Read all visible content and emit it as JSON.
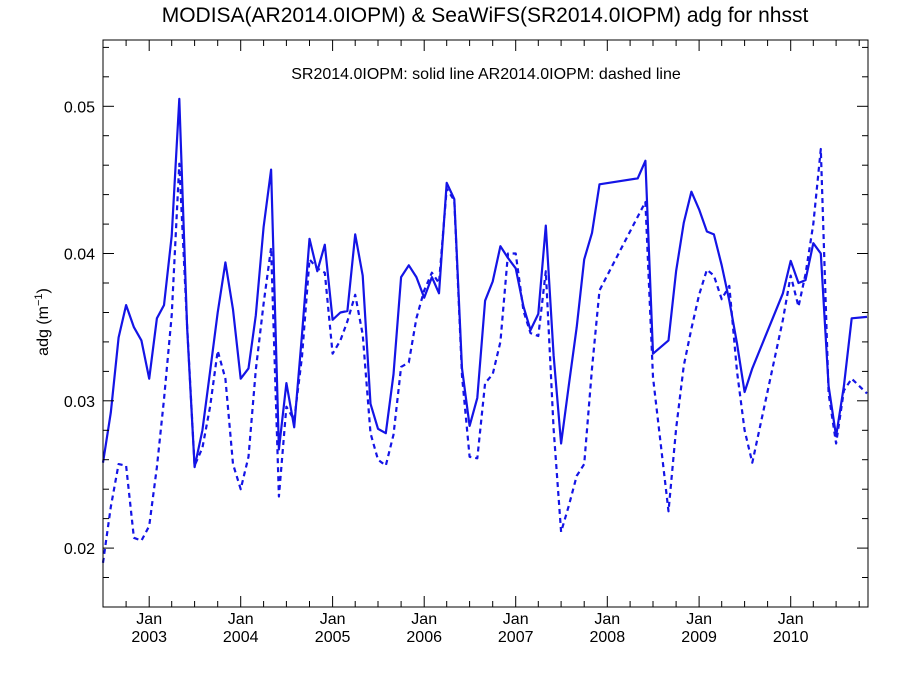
{
  "chart_data": {
    "type": "line",
    "title": "MODISA(AR2014.0IOPM) & SeaWiFS(SR2014.0IOPM)  adg for nhsst",
    "annotation": "SR2014.0IOPM: solid line   AR2014.0IOPM: dashed line",
    "ylabel": "adg (m",
    "ylabel_sup": "−1",
    "ylabel_close": ")",
    "xlim": [
      "2002-07-01",
      "2010-11-05"
    ],
    "ylim": [
      0.016,
      0.0545
    ],
    "y_ticks": [
      0.02,
      0.03,
      0.04,
      0.05
    ],
    "y_tick_labels": [
      "0.02",
      "0.03",
      "0.04",
      "0.05"
    ],
    "x_ticks": [
      {
        "date": "2003-01-01",
        "month": "Jan",
        "year": "2003"
      },
      {
        "date": "2004-01-01",
        "month": "Jan",
        "year": "2004"
      },
      {
        "date": "2005-01-01",
        "month": "Jan",
        "year": "2005"
      },
      {
        "date": "2006-01-01",
        "month": "Jan",
        "year": "2006"
      },
      {
        "date": "2007-01-01",
        "month": "Jan",
        "year": "2007"
      },
      {
        "date": "2008-01-01",
        "month": "Jan",
        "year": "2008"
      },
      {
        "date": "2009-01-01",
        "month": "Jan",
        "year": "2009"
      },
      {
        "date": "2010-01-01",
        "month": "Jan",
        "year": "2010"
      }
    ],
    "line_color": "#1414e6",
    "series": [
      {
        "style": "solid",
        "points": [
          [
            "2002-07-01",
            0.0258
          ],
          [
            "2002-08-01",
            0.0292
          ],
          [
            "2002-09-01",
            0.0343
          ],
          [
            "2002-10-01",
            0.0365
          ],
          [
            "2002-11-01",
            0.035
          ],
          [
            "2002-12-01",
            0.0341
          ],
          [
            "2003-01-01",
            0.0315
          ],
          [
            "2003-02-01",
            0.0356
          ],
          [
            "2003-03-01",
            0.0365
          ],
          [
            "2003-04-01",
            0.0412
          ],
          [
            "2003-05-01",
            0.0505
          ],
          [
            "2003-06-01",
            0.035
          ],
          [
            "2003-07-01",
            0.0255
          ],
          [
            "2003-08-01",
            0.028
          ],
          [
            "2003-09-01",
            0.032
          ],
          [
            "2003-10-01",
            0.036
          ],
          [
            "2003-11-01",
            0.0394
          ],
          [
            "2003-12-01",
            0.0362
          ],
          [
            "2004-01-01",
            0.0315
          ],
          [
            "2004-02-01",
            0.0322
          ],
          [
            "2004-03-01",
            0.0358
          ],
          [
            "2004-04-01",
            0.0418
          ],
          [
            "2004-05-01",
            0.0457
          ],
          [
            "2004-06-01",
            0.0267
          ],
          [
            "2004-07-01",
            0.0312
          ],
          [
            "2004-08-01",
            0.0282
          ],
          [
            "2004-09-01",
            0.0345
          ],
          [
            "2004-10-01",
            0.041
          ],
          [
            "2004-11-01",
            0.0388
          ],
          [
            "2004-12-01",
            0.0406
          ],
          [
            "2005-01-01",
            0.0355
          ],
          [
            "2005-02-01",
            0.036
          ],
          [
            "2005-03-01",
            0.0361
          ],
          [
            "2005-04-01",
            0.0413
          ],
          [
            "2005-05-01",
            0.0385
          ],
          [
            "2005-06-01",
            0.0298
          ],
          [
            "2005-07-01",
            0.0281
          ],
          [
            "2005-08-01",
            0.0278
          ],
          [
            "2005-09-01",
            0.0318
          ],
          [
            "2005-10-01",
            0.0384
          ],
          [
            "2005-11-01",
            0.0392
          ],
          [
            "2005-12-01",
            0.0384
          ],
          [
            "2006-01-01",
            0.037
          ],
          [
            "2006-02-01",
            0.0384
          ],
          [
            "2006-03-01",
            0.0373
          ],
          [
            "2006-04-01",
            0.0448
          ],
          [
            "2006-05-01",
            0.0437
          ],
          [
            "2006-06-01",
            0.0322
          ],
          [
            "2006-07-01",
            0.0283
          ],
          [
            "2006-08-01",
            0.0302
          ],
          [
            "2006-09-01",
            0.0368
          ],
          [
            "2006-10-01",
            0.0381
          ],
          [
            "2006-11-01",
            0.0405
          ],
          [
            "2006-12-01",
            0.0397
          ],
          [
            "2007-01-01",
            0.039
          ],
          [
            "2007-02-01",
            0.0364
          ],
          [
            "2007-03-01",
            0.0348
          ],
          [
            "2007-04-01",
            0.0359
          ],
          [
            "2007-05-01",
            0.0419
          ],
          [
            "2007-06-01",
            0.0331
          ],
          [
            "2007-07-01",
            0.0271
          ],
          [
            "2007-08-01",
            0.0311
          ],
          [
            "2007-09-01",
            0.035
          ],
          [
            "2007-10-01",
            0.0396
          ],
          [
            "2007-11-01",
            0.0414
          ],
          [
            "2007-12-01",
            0.0447
          ],
          [
            "2008-05-01",
            0.0451
          ],
          [
            "2008-06-01",
            0.0463
          ],
          [
            "2008-07-01",
            0.0332
          ],
          [
            "2008-09-01",
            0.0341
          ],
          [
            "2008-10-01",
            0.0388
          ],
          [
            "2008-11-01",
            0.0421
          ],
          [
            "2008-12-01",
            0.0442
          ],
          [
            "2009-01-01",
            0.043
          ],
          [
            "2009-02-01",
            0.0415
          ],
          [
            "2009-03-01",
            0.0413
          ],
          [
            "2009-04-01",
            0.0392
          ],
          [
            "2009-05-01",
            0.0368
          ],
          [
            "2009-06-01",
            0.0339
          ],
          [
            "2009-07-01",
            0.0306
          ],
          [
            "2009-08-01",
            0.0322
          ],
          [
            "2009-12-01",
            0.0373
          ],
          [
            "2010-01-01",
            0.0395
          ],
          [
            "2010-02-01",
            0.038
          ],
          [
            "2010-03-01",
            0.0382
          ],
          [
            "2010-04-01",
            0.0407
          ],
          [
            "2010-05-01",
            0.04
          ],
          [
            "2010-06-01",
            0.031
          ],
          [
            "2010-07-01",
            0.0276
          ],
          [
            "2010-08-01",
            0.031
          ],
          [
            "2010-09-01",
            0.0356
          ],
          [
            "2010-11-01",
            0.0357
          ]
        ]
      },
      {
        "style": "dashed",
        "points": [
          [
            "2002-07-01",
            0.019
          ],
          [
            "2002-08-01",
            0.0228
          ],
          [
            "2002-09-01",
            0.0257
          ],
          [
            "2002-10-01",
            0.0256
          ],
          [
            "2002-11-01",
            0.0207
          ],
          [
            "2002-12-01",
            0.0205
          ],
          [
            "2003-01-01",
            0.0215
          ],
          [
            "2003-02-01",
            0.0255
          ],
          [
            "2003-03-01",
            0.0301
          ],
          [
            "2003-04-01",
            0.0358
          ],
          [
            "2003-05-01",
            0.0461
          ],
          [
            "2003-06-01",
            0.0351
          ],
          [
            "2003-07-01",
            0.0256
          ],
          [
            "2003-08-01",
            0.0268
          ],
          [
            "2003-09-01",
            0.0296
          ],
          [
            "2003-10-01",
            0.0334
          ],
          [
            "2003-11-01",
            0.0315
          ],
          [
            "2003-12-01",
            0.0257
          ],
          [
            "2004-01-01",
            0.024
          ],
          [
            "2004-02-01",
            0.0262
          ],
          [
            "2004-03-01",
            0.0321
          ],
          [
            "2004-04-01",
            0.0366
          ],
          [
            "2004-05-01",
            0.0404
          ],
          [
            "2004-06-01",
            0.0235
          ],
          [
            "2004-07-01",
            0.0296
          ],
          [
            "2004-08-01",
            0.0287
          ],
          [
            "2004-09-01",
            0.033
          ],
          [
            "2004-10-01",
            0.0396
          ],
          [
            "2004-11-01",
            0.039
          ],
          [
            "2004-12-01",
            0.0387
          ],
          [
            "2005-01-01",
            0.0332
          ],
          [
            "2005-02-01",
            0.0341
          ],
          [
            "2005-03-01",
            0.0354
          ],
          [
            "2005-04-01",
            0.0372
          ],
          [
            "2005-05-01",
            0.0345
          ],
          [
            "2005-06-01",
            0.0278
          ],
          [
            "2005-07-01",
            0.026
          ],
          [
            "2005-08-01",
            0.0256
          ],
          [
            "2005-09-01",
            0.0277
          ],
          [
            "2005-10-01",
            0.0323
          ],
          [
            "2005-11-01",
            0.0326
          ],
          [
            "2005-12-01",
            0.0356
          ],
          [
            "2006-01-01",
            0.0375
          ],
          [
            "2006-02-01",
            0.0387
          ],
          [
            "2006-03-01",
            0.038
          ],
          [
            "2006-04-01",
            0.0444
          ],
          [
            "2006-05-01",
            0.0436
          ],
          [
            "2006-06-01",
            0.0317
          ],
          [
            "2006-07-01",
            0.0262
          ],
          [
            "2006-08-01",
            0.0261
          ],
          [
            "2006-09-01",
            0.0312
          ],
          [
            "2006-10-01",
            0.0318
          ],
          [
            "2006-11-01",
            0.034
          ],
          [
            "2006-12-01",
            0.04
          ],
          [
            "2007-01-01",
            0.04
          ],
          [
            "2007-02-01",
            0.0361
          ],
          [
            "2007-03-01",
            0.0346
          ],
          [
            "2007-04-01",
            0.0344
          ],
          [
            "2007-05-01",
            0.0388
          ],
          [
            "2007-06-01",
            0.0281
          ],
          [
            "2007-07-01",
            0.0211
          ],
          [
            "2007-08-01",
            0.0229
          ],
          [
            "2007-09-01",
            0.0249
          ],
          [
            "2007-10-01",
            0.0257
          ],
          [
            "2007-11-01",
            0.0322
          ],
          [
            "2007-12-01",
            0.0375
          ],
          [
            "2008-05-01",
            0.0425
          ],
          [
            "2008-06-01",
            0.0435
          ],
          [
            "2008-07-01",
            0.0316
          ],
          [
            "2008-09-01",
            0.0225
          ],
          [
            "2008-10-01",
            0.0281
          ],
          [
            "2008-11-01",
            0.0324
          ],
          [
            "2008-12-01",
            0.0349
          ],
          [
            "2009-01-01",
            0.0372
          ],
          [
            "2009-02-01",
            0.0389
          ],
          [
            "2009-03-01",
            0.0385
          ],
          [
            "2009-04-01",
            0.0369
          ],
          [
            "2009-05-01",
            0.0378
          ],
          [
            "2009-06-01",
            0.032
          ],
          [
            "2009-07-01",
            0.028
          ],
          [
            "2009-08-01",
            0.0258
          ],
          [
            "2009-12-01",
            0.0355
          ],
          [
            "2010-01-01",
            0.0385
          ],
          [
            "2010-02-01",
            0.0364
          ],
          [
            "2010-03-01",
            0.0386
          ],
          [
            "2010-04-01",
            0.042
          ],
          [
            "2010-05-01",
            0.0471
          ],
          [
            "2010-06-01",
            0.0305
          ],
          [
            "2010-07-01",
            0.0271
          ],
          [
            "2010-08-01",
            0.0307
          ],
          [
            "2010-09-01",
            0.0315
          ],
          [
            "2010-11-01",
            0.0305
          ]
        ]
      }
    ]
  }
}
